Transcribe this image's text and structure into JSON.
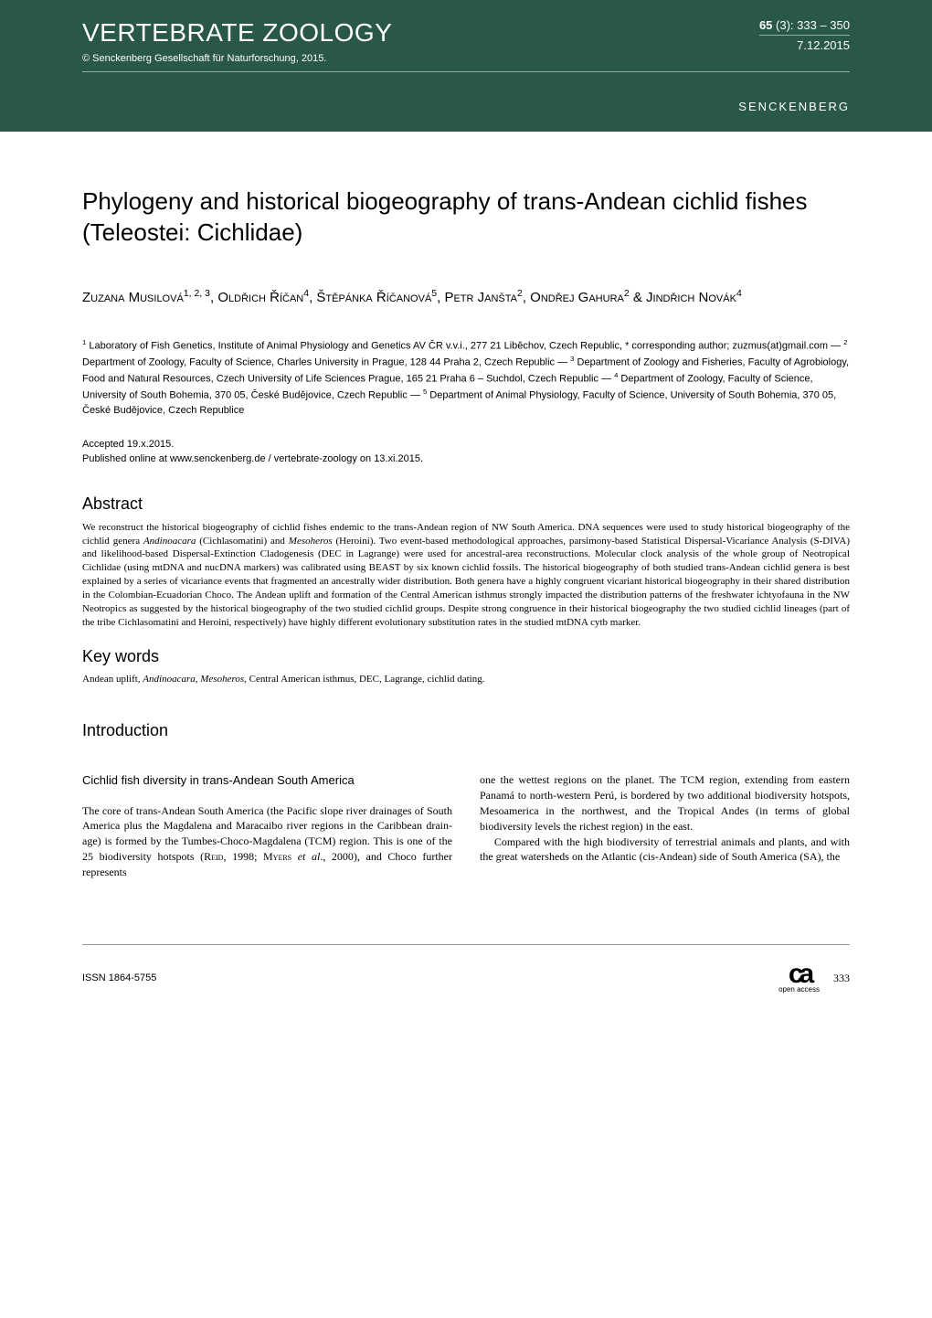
{
  "header": {
    "journal": "VERTEBRATE ZOOLOGY",
    "volume": "65",
    "issue": "(3):",
    "pages": "333 – 350",
    "date": "7.12.2015",
    "copyright": "© Senckenberg Gesellschaft für Naturforschung, 2015.",
    "brand": "SENCKENBERG"
  },
  "article": {
    "title": "Phylogeny and historical biogeography of trans-Andean cichlid fishes (Teleostei: Cichlidae)",
    "authors_html": "Zuzana Musilová<sup>1, 2, 3</sup>, Oldřich Říčan<sup>4</sup>, Štěpánka Říčanová<sup>5</sup>, Petr Janšta<sup>2</sup>, Ondřej Gahura<sup>2</sup> & Jindřich Novák<sup>4</sup>",
    "affiliations_html": "<sup>1</sup> Laboratory of Fish Genetics, Institute of Animal Physiology and Genetics AV ČR v.v.i., 277 21 Liběchov, Czech Republic, * corresponding author; zuzmus(at)gmail.com — <sup>2</sup> Department of Zoology, Faculty of Science, Charles University in Prague, 128 44 Praha 2, Czech Republic — <sup>3</sup> De­partment of Zoology and Fisheries, Faculty of Agrobiology, Food and Natural Resources, Czech University of Life Sciences Prague, 165 21 Pra­ha 6 – Suchdol, Czech Republic — <sup>4</sup> Department of Zoology, Faculty of Science, University of South Bohemia, 370 05, České Budějovice, Czech Republic — <sup>5</sup> Department of Animal Physiology, Faculty of Science, University of South Bohemia, 370 05, České Budějovice, Czech Republice",
    "accepted": "Accepted 19.x.2015.",
    "published": "Published online at www.senckenberg.de / vertebrate-zoology on 13.xi.2015.",
    "abstract_label": "Abstract",
    "abstract_html": "We reconstruct the historical biogeography of cichlid fishes endemic to the trans-Andean region of NW South America. DNA sequences were used to study historical biogeography of the cichlid genera <i>Andinoacara</i> (Cichlasomatini) and <i>Mesoheros</i> (Heroini). Two event-based methodological approaches, parsimony-based Statistical Dispersal-Vicariance Analysis (S-DIVA) and likelihood-based Dispersal-Extinction Cladogenesis (DEC in Lagrange) were used for ancestral-area reconstructions. Molecular clock analysis of the whole group of Neotropical Cichlidae (using mtDNA and nucDNA markers) was calibrated using BEAST by six known cichlid fossils. The historical biogeography of both studied trans-Andean cichlid genera is best explained by a series of vicariance events that fragmented an ancestrally wider distribution. Both genera have a highly congruent vicariant historical biogeography in their shared distribution in the Colombian-Ecuadorian Choco. The Andean uplift and formation of the Central American isthmus strongly impacted the distribution patterns of the freshwater ichtyofauna in the NW Neotropics as suggested by the historical biogeography of the two studied cichlid groups. Despite strong congruence in their historical biogeography the two studied cichlid lineages (part of the tribe Cichlasomatini and Heroini, respectively) have highly different evolutionary substitution rates in the studied mtDNA cytb marker.",
    "keywords_label": "Key words",
    "keywords_html": "Andean uplift, <i>Andinoacara</i>, <i>Mesoheros</i>, Central American isthmus, DEC, Lagrange, cichlid dating.",
    "introduction_label": "Introduction",
    "subheading": "Cichlid fish diversity in trans-Andean South America",
    "col1_html": "The core of trans-Andean South America (the Pacific slope river drainages of South America plus the Magda­lena and Maracaibo river regions in the Caribbean drain­age) is formed by the Tumbes-Choco-Magdalena (TCM) region. This is one of the 25 biodiversity hotspots (<span class='smallcaps'>Reid</span>, 1998; <span class='smallcaps'>Myers</span> <i>et al</i>., 2000), and Choco further represents",
    "col2_html": "one the wettest regions on the planet. The TCM region, extending from eastern Panamá to north-western Perú, is bordered by two additional biodiversity hotspots, Mesoamerica in the northwest, and the Tropical Andes (in terms of global biodiversity levels the richest region) in the east.<br>&nbsp;&nbsp;&nbsp;&nbsp;Compared with the high biodiversity of terrestrial animals and plants, and with the great watersheds on the Atlantic (cis-Andean) side of South America (SA), the"
  },
  "footer": {
    "issn_label": "ISSN",
    "issn": "1864-5755",
    "page": "333",
    "oa_label": "open access"
  },
  "colors": {
    "header_bg": "#2a5848",
    "text": "#000000",
    "bg": "#ffffff"
  }
}
